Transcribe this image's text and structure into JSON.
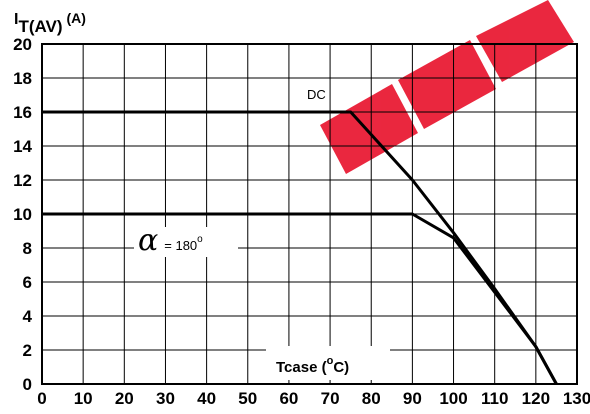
{
  "watermark": {
    "text": "EEPW",
    "color": "#e8102a"
  },
  "chart_data": {
    "type": "line",
    "title": "",
    "xlabel": "Tcase (°C)",
    "ylabel": "IT(AV) (A)",
    "ylabel_parts": {
      "main": "I",
      "sub": "T(AV)",
      "unit": "(A)"
    },
    "xlabel_parts": {
      "main": "Tcase (",
      "sup": "o",
      "rest": "C)"
    },
    "xlim": [
      0,
      130
    ],
    "ylim": [
      0,
      20
    ],
    "x_ticks": [
      0,
      10,
      20,
      30,
      40,
      50,
      60,
      70,
      80,
      90,
      100,
      110,
      120,
      130
    ],
    "y_ticks": [
      0,
      2,
      4,
      6,
      8,
      10,
      12,
      14,
      16,
      18,
      20
    ],
    "grid": true,
    "series": [
      {
        "name": "DC",
        "color": "#000000",
        "x": [
          0,
          75,
          90,
          100,
          110,
          120,
          125
        ],
        "y": [
          16,
          16,
          12,
          8.9,
          5.6,
          2.2,
          0
        ]
      },
      {
        "name": "α = 180°",
        "color": "#000000",
        "x": [
          0,
          90,
          100,
          110,
          120,
          125
        ],
        "y": [
          10,
          10,
          8.6,
          5.4,
          2.2,
          0
        ]
      }
    ],
    "annotations": [
      {
        "series": "DC",
        "text": "DC",
        "x": 70,
        "y": 17
      },
      {
        "series": "α = 180°",
        "symbol": "α",
        "text": "= 180",
        "sup": "o",
        "x": 13,
        "y": 8.4
      }
    ]
  }
}
